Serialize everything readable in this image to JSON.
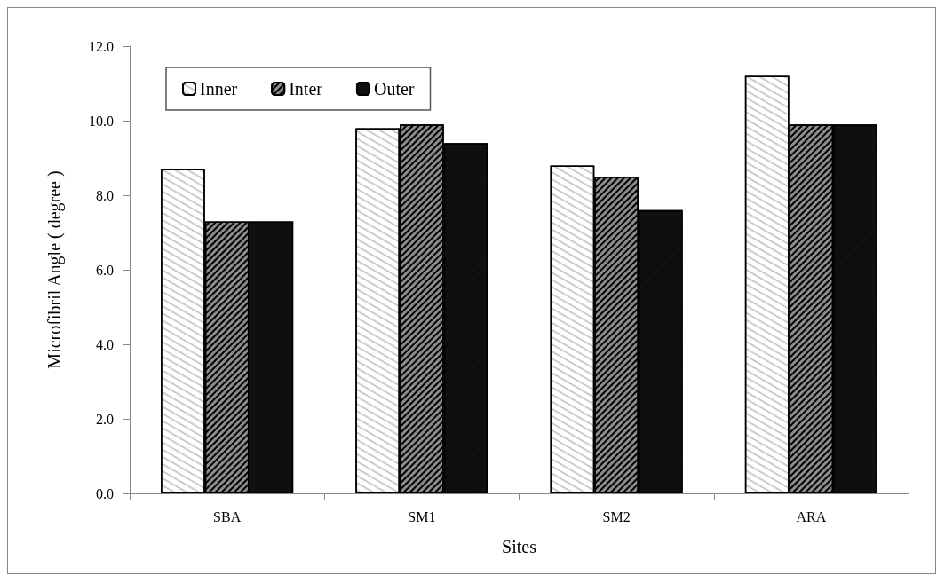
{
  "chart_data": {
    "type": "bar",
    "xlabel": "Sites",
    "ylabel": "Microfibril Angle ( degree )",
    "categories": [
      "SBA",
      "SM1",
      "SM2",
      "ARA"
    ],
    "series": [
      {
        "name": "Inner",
        "color": "#ffffff",
        "values": [
          8.7,
          9.8,
          8.8,
          11.2
        ]
      },
      {
        "name": "Inter",
        "color": "#8c8c8c",
        "values": [
          7.3,
          9.9,
          8.5,
          9.9
        ]
      },
      {
        "name": "Outer",
        "color": "#111111",
        "values": [
          7.3,
          9.4,
          7.6,
          9.9
        ]
      }
    ],
    "ylim": [
      0,
      12
    ],
    "yticks": [
      {
        "value": 0,
        "label": "0.0"
      },
      {
        "value": 2,
        "label": "2.0"
      },
      {
        "value": 4,
        "label": "4.0"
      },
      {
        "value": 6,
        "label": "6.0"
      },
      {
        "value": 8,
        "label": "8.0"
      },
      {
        "value": 10,
        "label": "10.0"
      },
      {
        "value": 12,
        "label": "12.0"
      }
    ],
    "grid": false,
    "legend": "top left"
  }
}
